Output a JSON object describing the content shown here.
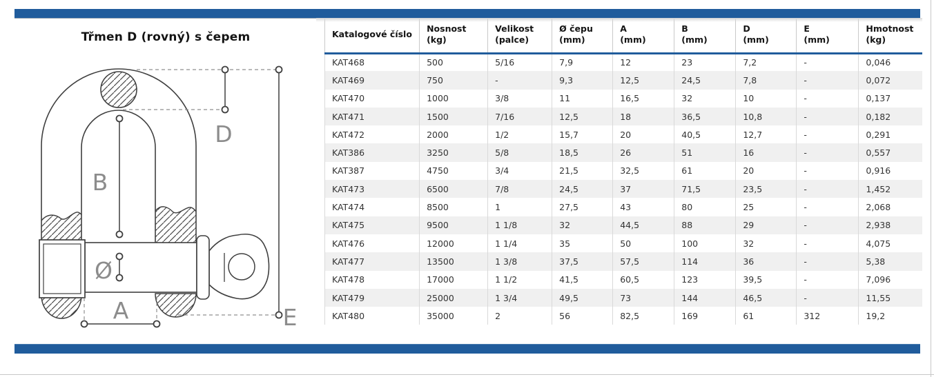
{
  "page": {
    "title": "Třmen D (rovný) s čepem"
  },
  "colors": {
    "accent_blue": "#205c9c",
    "row_alt": "#f0f0f0",
    "cell_border": "#d9d9d9"
  },
  "diagram": {
    "description": "technical-line-drawing-of-d-shackle-with-screw-pin",
    "dimension_labels": {
      "d": "D",
      "b": "B",
      "diameter": "Ø",
      "a": "A",
      "e": "E"
    }
  },
  "table": {
    "columns": [
      {
        "label": "Katalogové číslo",
        "unit": ""
      },
      {
        "label": "Nosnost",
        "unit": "(kg)"
      },
      {
        "label": "Velikost",
        "unit": "(palce)"
      },
      {
        "label": "Ø čepu",
        "unit": "(mm)"
      },
      {
        "label": "A",
        "unit": "(mm)"
      },
      {
        "label": "B",
        "unit": "(mm)"
      },
      {
        "label": "D",
        "unit": "(mm)"
      },
      {
        "label": "E",
        "unit": "(mm)"
      },
      {
        "label": "Hmotnost",
        "unit": "(kg)"
      }
    ],
    "rows": [
      [
        "KAT468",
        "500",
        "5/16",
        "7,9",
        "12",
        "23",
        "7,2",
        "-",
        "0,046"
      ],
      [
        "KAT469",
        "750",
        "-",
        "9,3",
        "12,5",
        "24,5",
        "7,8",
        "-",
        "0,072"
      ],
      [
        "KAT470",
        "1000",
        "3/8",
        "11",
        "16,5",
        "32",
        "10",
        "-",
        "0,137"
      ],
      [
        "KAT471",
        "1500",
        "7/16",
        "12,5",
        "18",
        "36,5",
        "10,8",
        "-",
        "0,182"
      ],
      [
        "KAT472",
        "2000",
        "1/2",
        "15,7",
        "20",
        "40,5",
        "12,7",
        "-",
        "0,291"
      ],
      [
        "KAT386",
        "3250",
        "5/8",
        "18,5",
        "26",
        "51",
        "16",
        "-",
        "0,557"
      ],
      [
        "KAT387",
        "4750",
        "3/4",
        "21,5",
        "32,5",
        "61",
        "20",
        "-",
        "0,916"
      ],
      [
        "KAT473",
        "6500",
        "7/8",
        "24,5",
        "37",
        "71,5",
        "23,5",
        "-",
        "1,452"
      ],
      [
        "KAT474",
        "8500",
        "1",
        "27,5",
        "43",
        "80",
        "25",
        "-",
        "2,068"
      ],
      [
        "KAT475",
        "9500",
        "1 1/8",
        "32",
        "44,5",
        "88",
        "29",
        "-",
        "2,938"
      ],
      [
        "KAT476",
        "12000",
        "1 1/4",
        "35",
        "50",
        "100",
        "32",
        "-",
        "4,075"
      ],
      [
        "KAT477",
        "13500",
        "1 3/8",
        "37,5",
        "57,5",
        "114",
        "36",
        "-",
        "5,38"
      ],
      [
        "KAT478",
        "17000",
        "1 1/2",
        "41,5",
        "60,5",
        "123",
        "39,5",
        "-",
        "7,096"
      ],
      [
        "KAT479",
        "25000",
        "1 3/4",
        "49,5",
        "73",
        "144",
        "46,5",
        "-",
        "11,55"
      ],
      [
        "KAT480",
        "35000",
        "2",
        "56",
        "82,5",
        "169",
        "61",
        "312",
        "19,2"
      ]
    ]
  }
}
